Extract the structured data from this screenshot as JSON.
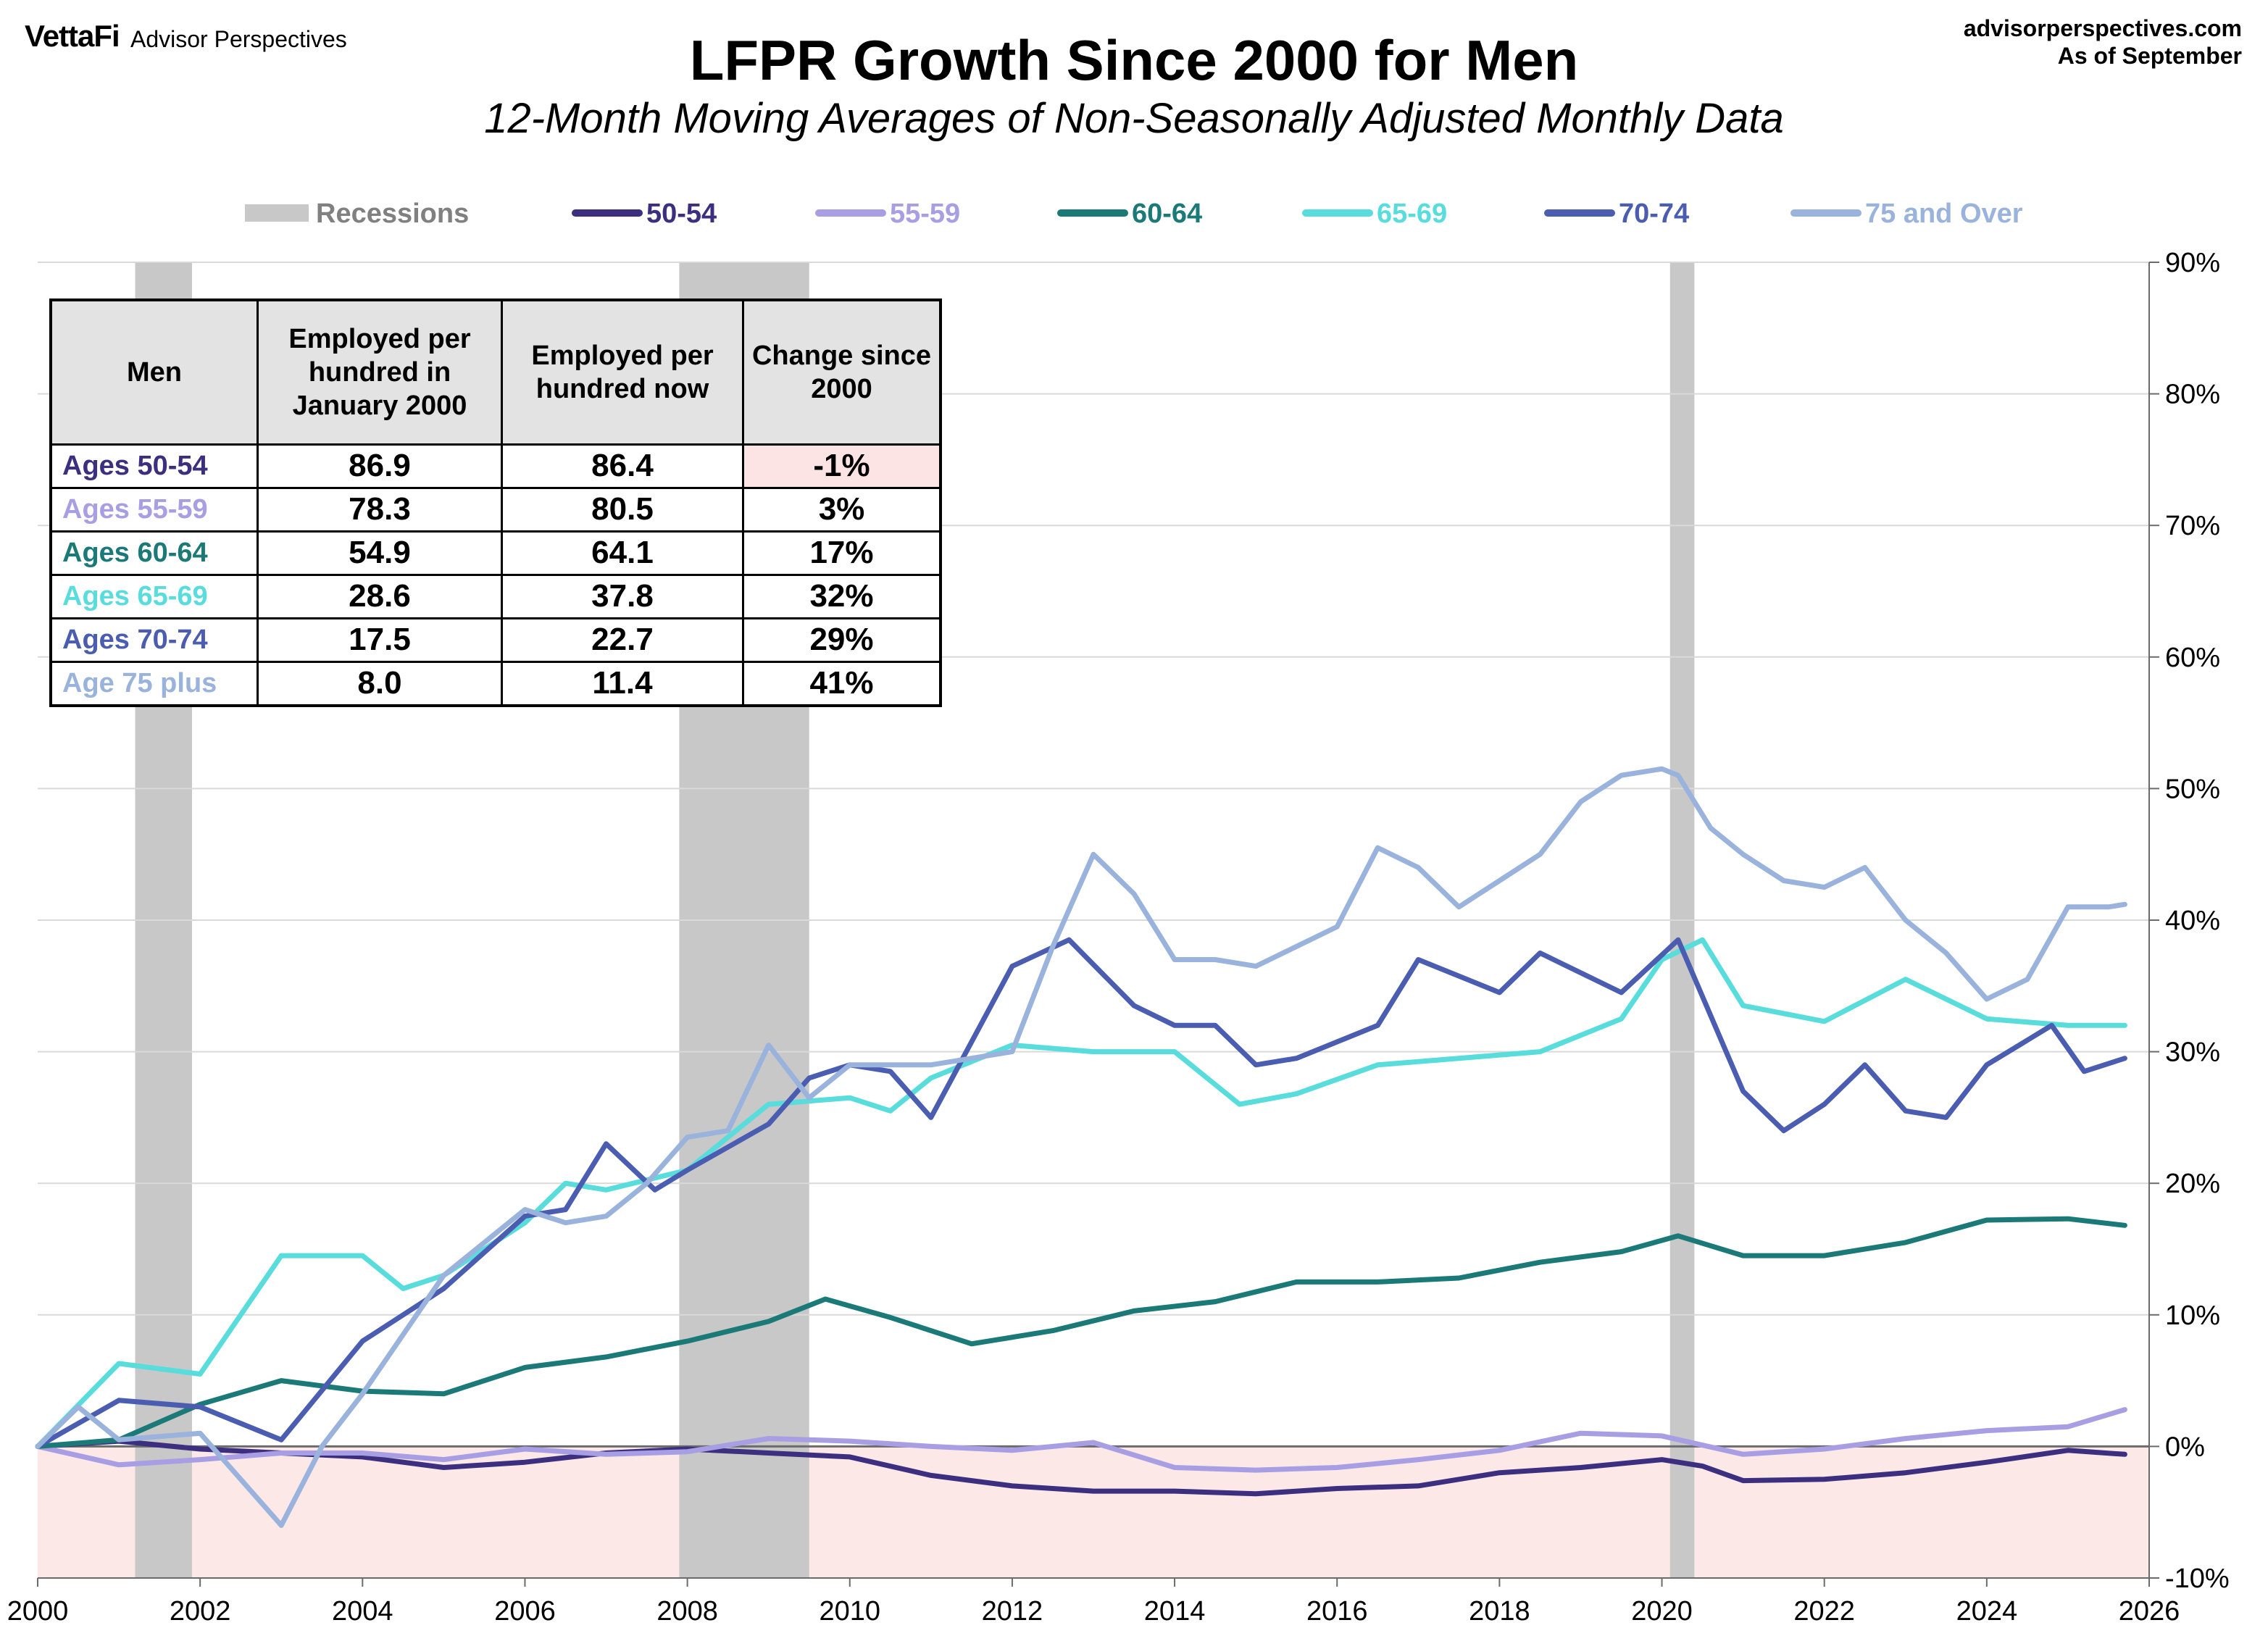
{
  "header": {
    "brand": "VettaFi",
    "brand_sub": "Advisor Perspectives",
    "site": "advisorperspectives.com",
    "as_of": "As of September",
    "title": "LFPR Growth Since 2000 for Men",
    "subtitle": "12-Month Moving Averages of Non-Seasonally Adjusted Monthly Data"
  },
  "colors": {
    "recession": "#c8c8c8",
    "negative_zone": "#fde8e8",
    "grid": "#d9d9d9"
  },
  "table": {
    "headers": [
      "Men",
      "Employed per hundred in January 2000",
      "Employed per hundred now",
      "Change since 2000"
    ],
    "rows": [
      {
        "label": "Ages 50-54",
        "jan2000": "86.9",
        "now": "86.4",
        "change": "-1%",
        "color": "#3d2f80"
      },
      {
        "label": "Ages 55-59",
        "jan2000": "78.3",
        "now": "80.5",
        "change": "3%",
        "color": "#a89ee4"
      },
      {
        "label": "Ages 60-64",
        "jan2000": "54.9",
        "now": "64.1",
        "change": "17%",
        "color": "#1b7a78"
      },
      {
        "label": "Ages 65-69",
        "jan2000": "28.6",
        "now": "37.8",
        "change": "32%",
        "color": "#58dcdc"
      },
      {
        "label": "Ages 70-74",
        "jan2000": "17.5",
        "now": "22.7",
        "change": "29%",
        "color": "#4a5db0"
      },
      {
        "label": "Age 75 plus",
        "jan2000": "8.0",
        "now": "11.4",
        "change": "41%",
        "color": "#9ab3dc"
      }
    ]
  },
  "chart_data": {
    "type": "line",
    "title": "LFPR Growth Since 2000 for Men",
    "subtitle": "12-Month Moving Averages of Non-Seasonally Adjusted Monthly Data",
    "xlabel": "",
    "ylabel": "",
    "xlim": [
      2000,
      2026
    ],
    "ylim": [
      -10,
      90
    ],
    "x_ticks": [
      "2000",
      "2002",
      "2004",
      "2006",
      "2008",
      "2010",
      "2012",
      "2014",
      "2016",
      "2018",
      "2020",
      "2022",
      "2024",
      "2026"
    ],
    "y_ticks": [
      "90%",
      "80%",
      "70%",
      "60%",
      "50%",
      "40%",
      "30%",
      "20%",
      "10%",
      "0%",
      "-10%"
    ],
    "grid": true,
    "legend_position": "top",
    "legend_recession_label": "Recessions",
    "recessions": [
      [
        2001.2,
        2001.9
      ],
      [
        2007.9,
        2009.5
      ],
      [
        2020.1,
        2020.4
      ]
    ],
    "series": [
      {
        "name": "50-54",
        "color": "#3d2f80",
        "x": [
          2000,
          2001,
          2002,
          2003,
          2004,
          2005,
          2006,
          2007,
          2008,
          2009,
          2010,
          2011,
          2012,
          2013,
          2014,
          2015,
          2016,
          2017,
          2018,
          2019,
          2020,
          2020.5,
          2021,
          2022,
          2023,
          2024,
          2025,
          2025.7
        ],
        "y": [
          0,
          0.4,
          -0.2,
          -0.5,
          -0.8,
          -1.6,
          -1.2,
          -0.5,
          -0.2,
          -0.5,
          -0.8,
          -2.2,
          -3.0,
          -3.4,
          -3.4,
          -3.6,
          -3.2,
          -3.0,
          -2.0,
          -1.6,
          -1.0,
          -1.5,
          -2.6,
          -2.5,
          -2.0,
          -1.2,
          -0.3,
          -0.6
        ]
      },
      {
        "name": "55-59",
        "color": "#a89ee4",
        "x": [
          2000,
          2001,
          2002,
          2003,
          2004,
          2005,
          2006,
          2007,
          2008,
          2009,
          2010,
          2011,
          2012,
          2013,
          2014,
          2015,
          2016,
          2017,
          2018,
          2019,
          2020,
          2021,
          2022,
          2023,
          2024,
          2025,
          2025.7
        ],
        "y": [
          0,
          -1.4,
          -1.0,
          -0.5,
          -0.5,
          -1.0,
          -0.2,
          -0.6,
          -0.4,
          0.6,
          0.4,
          0,
          -0.3,
          0.3,
          -1.6,
          -1.8,
          -1.6,
          -1.0,
          -0.3,
          1.0,
          0.8,
          -0.6,
          -0.2,
          0.6,
          1.2,
          1.5,
          2.8
        ]
      },
      {
        "name": "60-64",
        "color": "#1b7a78",
        "x": [
          2000,
          2001,
          2002,
          2003,
          2004,
          2005,
          2006,
          2007,
          2008,
          2009,
          2009.7,
          2010.5,
          2011.5,
          2012.5,
          2013.5,
          2014.5,
          2015.5,
          2016.5,
          2017.5,
          2018.5,
          2019.5,
          2020.2,
          2021,
          2022,
          2023,
          2024,
          2025,
          2025.7
        ],
        "y": [
          0,
          0.5,
          3.2,
          5.0,
          4.2,
          4.0,
          6.0,
          6.8,
          8.0,
          9.5,
          11.2,
          9.8,
          7.8,
          8.8,
          10.3,
          11.0,
          12.5,
          12.5,
          12.8,
          14.0,
          14.8,
          16.0,
          14.5,
          14.5,
          15.5,
          17.2,
          17.3,
          16.8
        ]
      },
      {
        "name": "65-69",
        "color": "#58dcdc",
        "x": [
          2000,
          2001,
          2002,
          2002.5,
          2003,
          2004,
          2004.5,
          2005,
          2006,
          2006.5,
          2007,
          2008,
          2009,
          2010,
          2010.5,
          2011,
          2012,
          2013,
          2014,
          2014.8,
          2015.5,
          2016.5,
          2017.5,
          2018.5,
          2019.5,
          2020,
          2020.5,
          2021,
          2022,
          2023,
          2024,
          2025,
          2025.7
        ],
        "y": [
          0,
          6.3,
          5.5,
          10,
          14.5,
          14.5,
          12.0,
          13.0,
          17.0,
          20.0,
          19.5,
          21.0,
          26.0,
          26.5,
          25.5,
          28.0,
          30.5,
          30.0,
          30.0,
          26.0,
          26.8,
          29.0,
          29.5,
          30.0,
          32.5,
          37.0,
          38.5,
          33.5,
          32.3,
          35.5,
          32.5,
          32.0,
          32.0
        ]
      },
      {
        "name": "70-74",
        "color": "#4a5db0",
        "x": [
          2000,
          2001,
          2002,
          2003,
          2004,
          2005,
          2006,
          2006.5,
          2007,
          2007.6,
          2008,
          2009,
          2009.5,
          2010,
          2010.5,
          2011,
          2012,
          2012.7,
          2013.5,
          2014,
          2014.5,
          2015,
          2015.5,
          2016.5,
          2017,
          2018,
          2018.5,
          2019.5,
          2020.2,
          2021,
          2021.5,
          2022,
          2022.5,
          2023,
          2023.5,
          2024,
          2024.8,
          2025.2,
          2025.7
        ],
        "y": [
          0,
          3.5,
          3.0,
          0.5,
          8.0,
          12.0,
          17.5,
          18.0,
          23.0,
          19.5,
          21.0,
          24.5,
          28.0,
          29.0,
          28.5,
          25.0,
          36.5,
          38.5,
          33.5,
          32.0,
          32.0,
          29.0,
          29.5,
          32.0,
          37.0,
          34.5,
          37.5,
          34.5,
          38.5,
          27.0,
          24.0,
          26.0,
          29.0,
          25.5,
          25.0,
          29.0,
          32.0,
          28.5,
          29.5
        ]
      },
      {
        "name": "75 and Over",
        "color": "#9ab3dc",
        "x": [
          2000,
          2000.5,
          2001,
          2002,
          2003,
          2003.5,
          2004,
          2005,
          2006,
          2006.5,
          2007,
          2007.5,
          2008,
          2008.5,
          2009,
          2009.5,
          2010,
          2011,
          2012,
          2012.5,
          2013,
          2013.5,
          2014,
          2014.5,
          2015,
          2016,
          2016.5,
          2017,
          2017.5,
          2018,
          2018.5,
          2019,
          2019.5,
          2020,
          2020.2,
          2020.6,
          2021,
          2021.5,
          2022,
          2022.5,
          2023,
          2023.5,
          2024,
          2024.5,
          2025,
          2025.5,
          2025.7
        ],
        "y": [
          0,
          3.0,
          0.5,
          1.0,
          -6.0,
          0,
          4.0,
          13.0,
          18.0,
          17.0,
          17.5,
          20.0,
          23.5,
          24.0,
          30.5,
          26.5,
          29.0,
          29.0,
          30.0,
          38.0,
          45.0,
          42.0,
          37.0,
          37.0,
          36.5,
          39.5,
          45.5,
          44.0,
          41.0,
          43.0,
          45.0,
          49.0,
          51.0,
          51.5,
          51.0,
          47.0,
          45.0,
          43.0,
          42.5,
          44.0,
          40.0,
          37.5,
          34.0,
          35.5,
          41.0,
          41.0,
          41.2
        ]
      }
    ]
  }
}
